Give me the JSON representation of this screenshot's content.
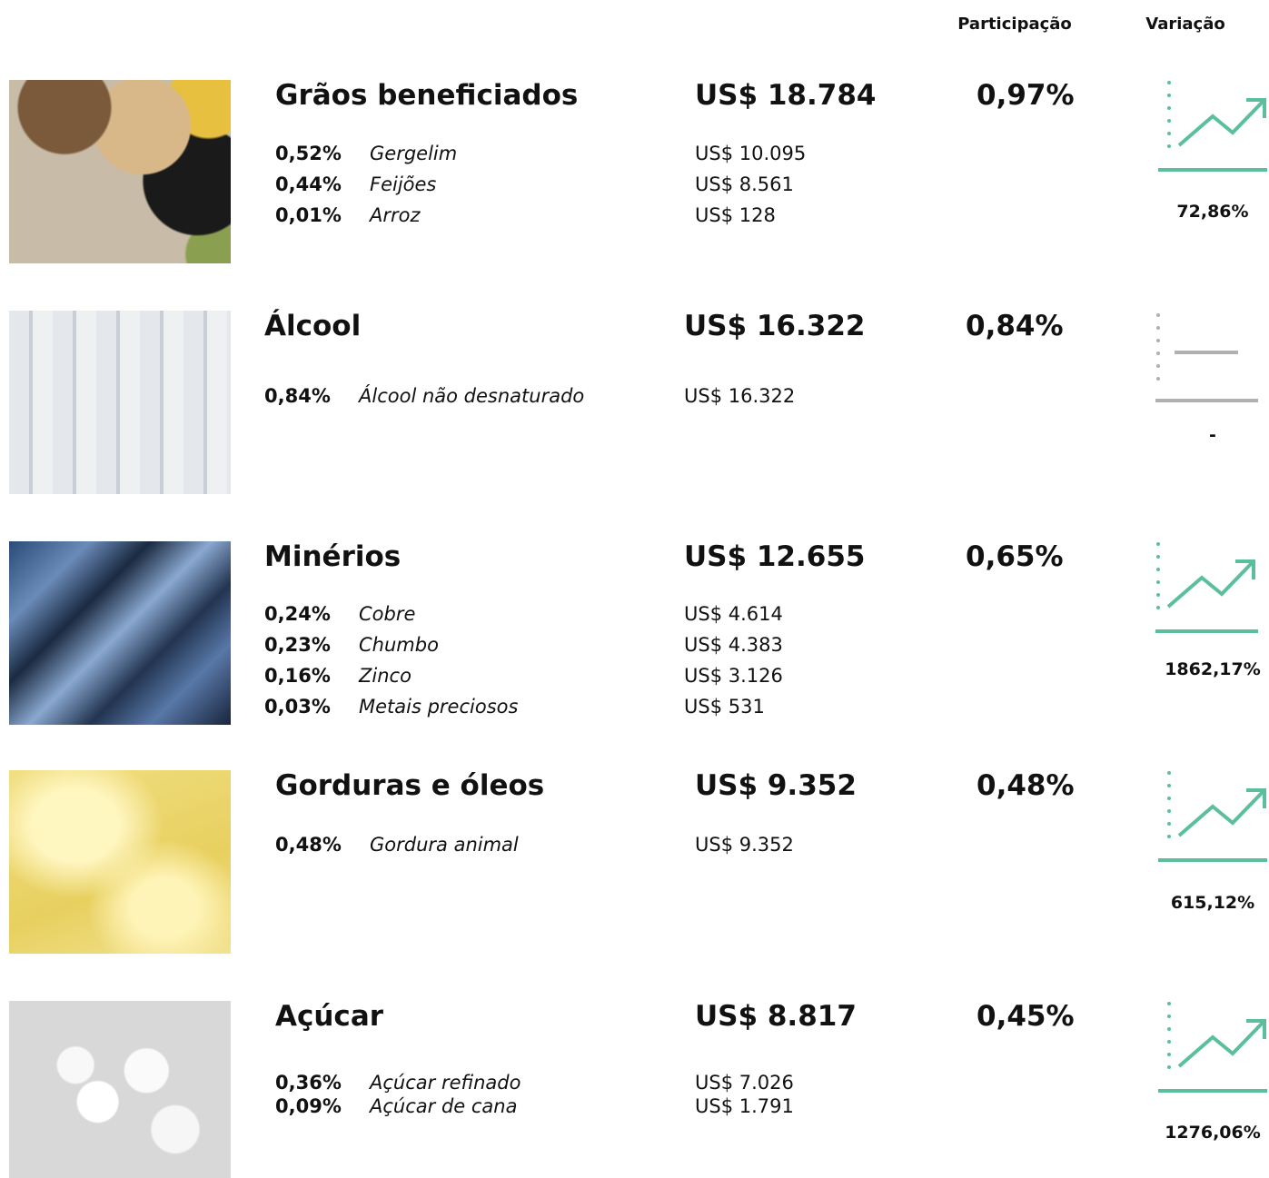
{
  "header": {
    "share": "Participação",
    "variation": "Variação"
  },
  "items": [
    {
      "title": "Grãos beneficiados",
      "value": "US$ 18.784",
      "share": "0,97%",
      "variation": "72,86%",
      "details": [
        {
          "share": "0,52%",
          "name": "Gergelim",
          "value": "US$ 10.095"
        },
        {
          "share": "0,44%",
          "name": "Feijões",
          "value": "US$ 8.561"
        },
        {
          "share": "0,01%",
          "name": "Arroz",
          "value": "US$ 128"
        }
      ]
    },
    {
      "title": "Álcool",
      "value": "US$ 16.322",
      "share": "0,84%",
      "variation": "-",
      "details": [
        {
          "share": "0,84%",
          "name": "Álcool não desnaturado",
          "value": "US$ 16.322"
        }
      ]
    },
    {
      "title": "Minérios",
      "value": "US$ 12.655",
      "share": "0,65%",
      "variation": "1862,17%",
      "details": [
        {
          "share": "0,24%",
          "name": "Cobre",
          "value": "US$ 4.614"
        },
        {
          "share": "0,23%",
          "name": "Chumbo",
          "value": "US$ 4.383"
        },
        {
          "share": "0,16%",
          "name": "Zinco",
          "value": "US$ 3.126"
        },
        {
          "share": "0,03%",
          "name": "Metais preciosos",
          "value": "US$ 531"
        }
      ]
    },
    {
      "title": "Gorduras e óleos",
      "value": "US$ 9.352",
      "share": "0,48%",
      "variation": "615,12%",
      "details": [
        {
          "share": "0,48%",
          "name": "Gordura animal",
          "value": "US$ 9.352"
        }
      ]
    },
    {
      "title": "Açúcar",
      "value": "US$ 8.817",
      "share": "0,45%",
      "variation": "1276,06%",
      "details": [
        {
          "share": "0,36%",
          "name": "Açúcar refinado",
          "value": "US$ 7.026"
        },
        {
          "share": "0,09%",
          "name": "Açúcar de cana",
          "value": "US$ 1.791"
        }
      ]
    }
  ]
}
